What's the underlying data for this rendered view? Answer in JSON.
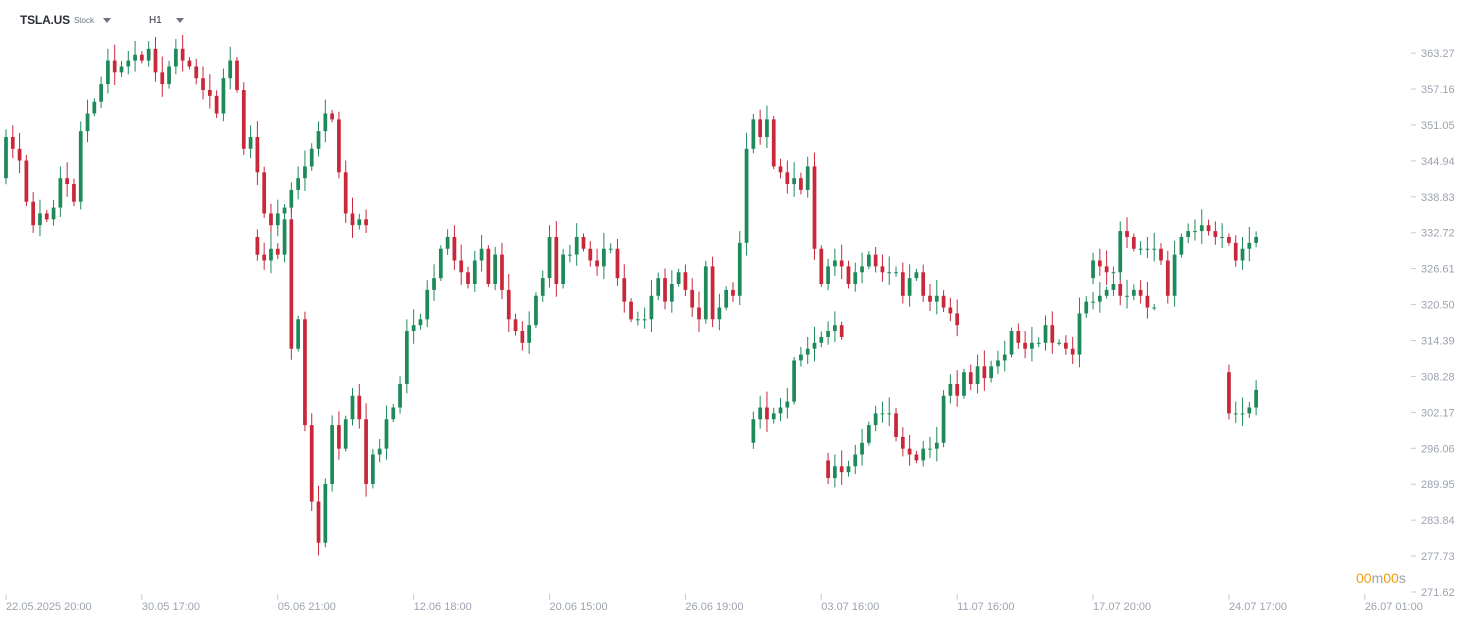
{
  "header": {
    "symbol": "TSLA.US",
    "symbol_type": "Stock",
    "timeframe": "H1"
  },
  "countdown": {
    "minutes": "00",
    "min_unit": "m",
    "seconds": "00",
    "sec_unit": "s"
  },
  "colors": {
    "up": "#1e8a5a",
    "down": "#c8283a",
    "axis_text": "#9ca3af",
    "tick": "#c7cbd1"
  },
  "chart_data": {
    "type": "candlestick",
    "y_ticks": [
      "363.27",
      "357.16",
      "351.05",
      "344.94",
      "338.83",
      "332.72",
      "326.61",
      "320.50",
      "314.39",
      "308.28",
      "302.17",
      "296.06",
      "289.95",
      "283.84",
      "277.73",
      "271.62"
    ],
    "ylim": [
      271.62,
      365.5
    ],
    "x_labels": [
      {
        "date": "22.05.2025",
        "time": "20:00",
        "i": 0
      },
      {
        "date": "30.05",
        "time": "17:00",
        "i": 20
      },
      {
        "date": "05.06",
        "time": "21:00",
        "i": 40
      },
      {
        "date": "12.06",
        "time": "18:00",
        "i": 60
      },
      {
        "date": "20.06",
        "time": "15:00",
        "i": 80
      },
      {
        "date": "26.06",
        "time": "19:00",
        "i": 100
      },
      {
        "date": "03.07",
        "time": "16:00",
        "i": 120
      },
      {
        "date": "11.07",
        "time": "16:00",
        "i": 140
      },
      {
        "date": "17.07",
        "time": "20:00",
        "i": 160
      },
      {
        "date": "24.07",
        "time": "17:00",
        "i": 180
      },
      {
        "date": "26.07",
        "time": "01:00",
        "i": 200
      }
    ],
    "x_range": [
      0,
      204
    ],
    "segments": [
      {
        "start": 0,
        "values": [
          342,
          349,
          347,
          345,
          338,
          334,
          336,
          335,
          337,
          342,
          341,
          338,
          350,
          353,
          355,
          358,
          362,
          360,
          361,
          362,
          363,
          362,
          364,
          360,
          358,
          361,
          364,
          362,
          361,
          359,
          357,
          356,
          353,
          359,
          362,
          357,
          347,
          349,
          343,
          336,
          334,
          336,
          337,
          340,
          342,
          344,
          347,
          350,
          353,
          352,
          343,
          336,
          334,
          335,
          334
        ]
      },
      {
        "start": 37,
        "values": [
          332,
          329,
          328,
          330,
          329,
          335,
          313,
          318,
          300,
          287,
          280,
          290,
          300,
          296,
          301,
          305,
          301,
          290,
          295,
          296,
          301,
          303,
          307,
          316,
          317,
          318,
          323,
          325,
          330,
          332,
          328,
          326,
          324,
          328,
          330,
          324,
          329,
          323,
          318,
          316,
          314,
          317,
          322,
          325,
          332,
          324,
          329,
          329,
          332,
          330,
          328,
          327,
          330,
          330,
          325,
          321,
          318,
          318,
          318,
          322,
          325,
          321,
          324,
          326,
          323,
          320,
          318,
          327,
          318,
          320,
          323,
          322,
          331,
          347,
          352,
          349,
          352,
          344,
          343,
          341,
          342,
          340,
          344,
          330,
          324,
          327,
          328,
          327,
          324,
          326,
          327,
          329,
          327,
          326,
          326,
          326,
          322,
          325,
          326,
          322,
          321,
          322,
          320,
          319,
          317
        ]
      },
      {
        "start": 110,
        "values": [
          297,
          301,
          303,
          301,
          302,
          303,
          304,
          311,
          312,
          313,
          314,
          315,
          316,
          317,
          315
        ]
      },
      {
        "start": 121,
        "values": [
          294,
          291,
          293,
          292,
          293,
          295,
          297,
          300,
          302,
          302,
          302,
          298,
          296,
          295,
          294,
          296,
          296,
          297,
          305,
          307,
          305,
          309,
          307,
          310,
          308,
          310,
          311,
          312,
          316,
          314,
          313,
          314,
          314,
          317,
          314,
          314,
          313,
          312,
          319,
          321,
          321,
          322,
          323,
          324,
          322,
          322,
          323,
          322,
          320,
          320
        ]
      },
      {
        "start": 160,
        "values": [
          325,
          328,
          327,
          326,
          326,
          333,
          332,
          330,
          330,
          330,
          330,
          328,
          322,
          329,
          332,
          333,
          333,
          334,
          333,
          332,
          332,
          331,
          328,
          330,
          331,
          332
        ]
      },
      {
        "start": 180,
        "values": [
          309,
          302,
          302,
          302,
          303,
          306
        ]
      }
    ]
  }
}
